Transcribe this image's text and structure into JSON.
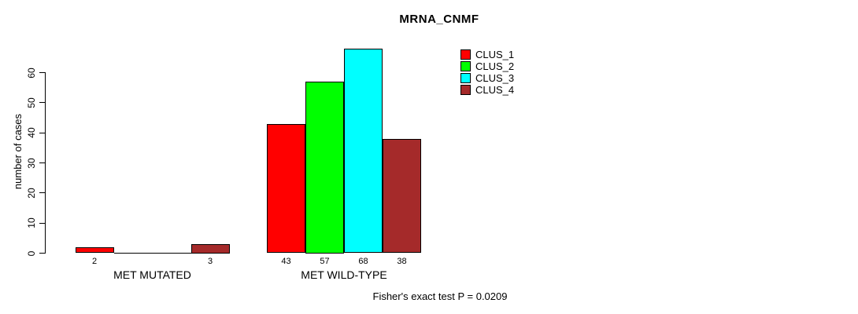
{
  "chart_data": {
    "type": "bar",
    "title": "MRNA_CNMF",
    "ylabel": "number of cases",
    "xlabel": "",
    "categories": [
      "MET MUTATED",
      "MET WILD-TYPE"
    ],
    "series": [
      {
        "name": "CLUS_1",
        "color": "#ff0000",
        "values": [
          2,
          43
        ]
      },
      {
        "name": "CLUS_2",
        "color": "#00ff00",
        "values": [
          0,
          57
        ]
      },
      {
        "name": "CLUS_3",
        "color": "#00ffff",
        "values": [
          0,
          68
        ]
      },
      {
        "name": "CLUS_4",
        "color": "#a52a2a",
        "values": [
          3,
          38
        ]
      }
    ],
    "yticks": [
      0,
      10,
      20,
      30,
      40,
      50,
      60
    ],
    "ylim": [
      0,
      68
    ],
    "grid": false,
    "legend_position": "top-right",
    "bar_value_labels": "shown under each bar, hidden for zero-height bars",
    "annotation": "Fisher's exact test P = 0.0209"
  }
}
